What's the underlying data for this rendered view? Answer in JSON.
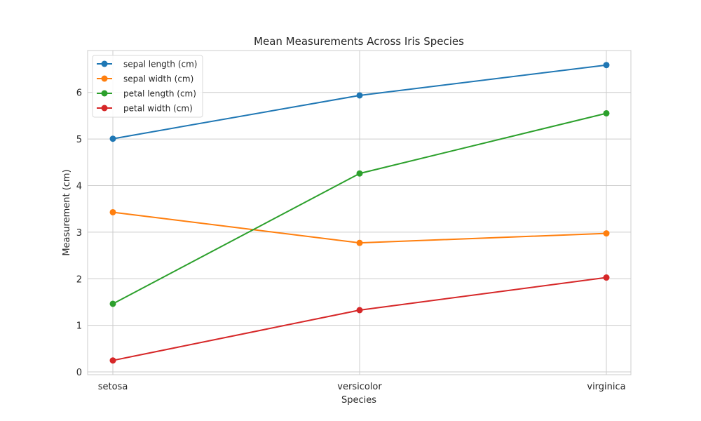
{
  "chart_data": {
    "type": "line",
    "title": "Mean Measurements Across Iris Species",
    "xlabel": "Species",
    "ylabel": "Measurement (cm)",
    "categories": [
      "setosa",
      "versicolor",
      "virginica"
    ],
    "ylim": [
      -0.06,
      6.9
    ],
    "yticks": [
      0,
      1,
      2,
      3,
      4,
      5,
      6
    ],
    "grid": true,
    "legend_position": "top-left",
    "series": [
      {
        "name": "sepal length (cm)",
        "color": "#1f77b4",
        "values": [
          5.006,
          5.936,
          6.588
        ]
      },
      {
        "name": "sepal width (cm)",
        "color": "#ff7f0e",
        "values": [
          3.428,
          2.77,
          2.974
        ]
      },
      {
        "name": "petal length (cm)",
        "color": "#2ca02c",
        "values": [
          1.462,
          4.26,
          5.552
        ]
      },
      {
        "name": "petal width (cm)",
        "color": "#d62728",
        "values": [
          0.246,
          1.326,
          2.026
        ]
      }
    ]
  }
}
